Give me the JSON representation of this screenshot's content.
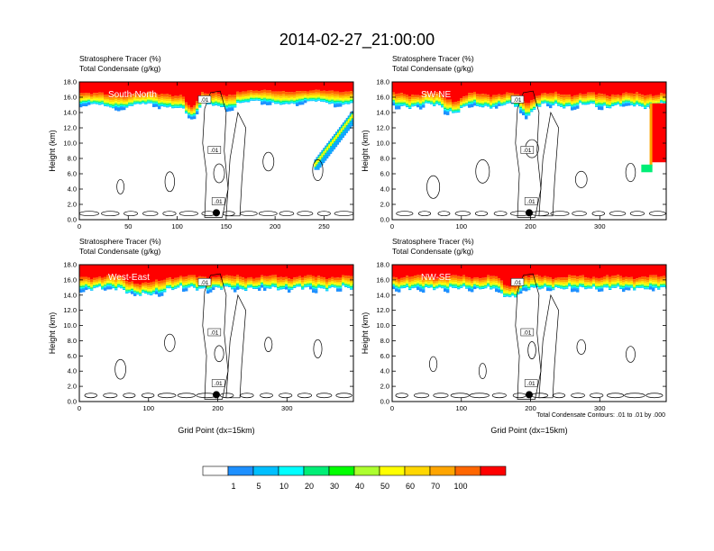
{
  "title": "2014-02-27_21:00:00",
  "subtitle_line1": "Stratosphere Tracer   (%)",
  "subtitle_line2": "Total Condensate   (g/kg)",
  "ylabel": "Height (km)",
  "xlabel": "Grid Point (dx=15km)",
  "contour_note": "Total Condensate Contours: .01 to .01 by .000",
  "contour_label": ".01",
  "colorbar": {
    "labels": [
      "1",
      "5",
      "10",
      "20",
      "30",
      "40",
      "50",
      "60",
      "70",
      "100"
    ],
    "colors": [
      "#ffffff",
      "#1e90ff",
      "#00bfff",
      "#00ffff",
      "#00ee76",
      "#00ff00",
      "#adff2f",
      "#ffff00",
      "#ffd700",
      "#ffa500",
      "#ff6600",
      "#ff0000"
    ]
  },
  "chart_data": [
    {
      "type": "heatmap",
      "panel_label": "South-North",
      "x_ticks": [
        "0",
        "50",
        "100",
        "150",
        "200",
        "250"
      ],
      "xlim": [
        0,
        280
      ],
      "y_ticks": [
        "0.0",
        "2.0",
        "4.0",
        "6.0",
        "8.0",
        "10.0",
        "12.0",
        "14.0",
        "16.0",
        "18.0"
      ],
      "ylim": [
        0,
        18
      ],
      "marker_x": 140,
      "xlabel_shown": false
    },
    {
      "type": "heatmap",
      "panel_label": "SW-NE",
      "x_ticks": [
        "0",
        "100",
        "200",
        "300"
      ],
      "xlim": [
        0,
        396
      ],
      "y_ticks": [
        "0.0",
        "2.0",
        "4.0",
        "6.0",
        "8.0",
        "10.0",
        "12.0",
        "14.0",
        "16.0",
        "18.0"
      ],
      "ylim": [
        0,
        18
      ],
      "marker_x": 198,
      "xlabel_shown": false
    },
    {
      "type": "heatmap",
      "panel_label": "West-East",
      "x_ticks": [
        "0",
        "100",
        "200",
        "300"
      ],
      "xlim": [
        0,
        396
      ],
      "y_ticks": [
        "0.0",
        "2.0",
        "4.0",
        "6.0",
        "8.0",
        "10.0",
        "12.0",
        "14.0",
        "16.0",
        "18.0"
      ],
      "ylim": [
        0,
        18
      ],
      "marker_x": 198,
      "xlabel_shown": true
    },
    {
      "type": "heatmap",
      "panel_label": "NW-SE",
      "x_ticks": [
        "0",
        "100",
        "200",
        "300"
      ],
      "xlim": [
        0,
        396
      ],
      "y_ticks": [
        "0.0",
        "2.0",
        "4.0",
        "6.0",
        "8.0",
        "10.0",
        "12.0",
        "14.0",
        "16.0",
        "18.0"
      ],
      "ylim": [
        0,
        18
      ],
      "marker_x": 198,
      "xlabel_shown": true
    }
  ]
}
